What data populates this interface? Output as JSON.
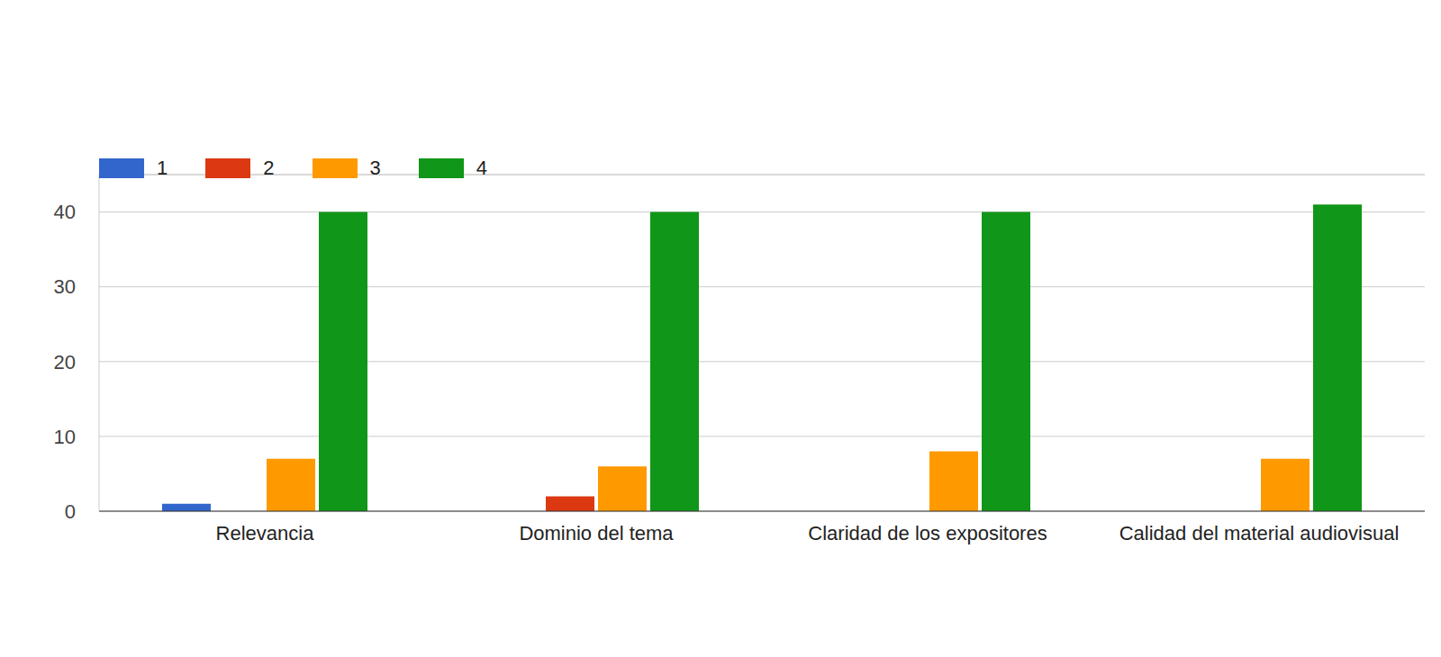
{
  "chart_data": {
    "type": "bar",
    "categories": [
      "Relevancia",
      "Dominio del tema",
      "Claridad de los expositores",
      "Calidad del material audiovisual"
    ],
    "series": [
      {
        "name": "1",
        "color": "#3366cc",
        "values": [
          1,
          0,
          0,
          0
        ]
      },
      {
        "name": "2",
        "color": "#dc3912",
        "values": [
          0,
          2,
          0,
          0
        ]
      },
      {
        "name": "3",
        "color": "#ff9900",
        "values": [
          7,
          6,
          8,
          7
        ]
      },
      {
        "name": "4",
        "color": "#109618",
        "values": [
          40,
          40,
          40,
          41
        ]
      }
    ],
    "ylim": [
      0,
      45
    ],
    "yticks": [
      0,
      10,
      20,
      30,
      40
    ],
    "grid": true,
    "legend": "top-left"
  }
}
